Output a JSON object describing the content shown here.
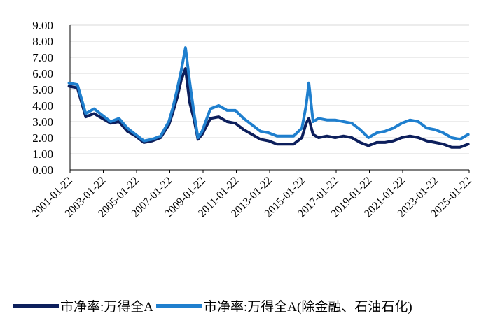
{
  "chart_data": {
    "type": "line",
    "title": "",
    "xlabel": "",
    "ylabel": "",
    "ylim": [
      0,
      9
    ],
    "y_ticks": [
      "0.00",
      "1.00",
      "2.00",
      "3.00",
      "4.00",
      "5.00",
      "6.00",
      "7.00",
      "8.00",
      "9.00"
    ],
    "x_ticks": [
      "2001-01-22",
      "2003-01-22",
      "2005-01-22",
      "2007-01-22",
      "2009-01-22",
      "2011-01-22",
      "2013-01-22",
      "2015-01-22",
      "2017-01-22",
      "2019-01-22",
      "2021-01-22",
      "2023-01-22",
      "2025-01-22"
    ],
    "x_range": [
      "2001-01-22",
      "2025-01-22"
    ],
    "grid": "horizontal",
    "legend_position": "bottom",
    "series": [
      {
        "name": "市净率:万得全A",
        "color": "#0d1f5c",
        "x": [
          "2001-01",
          "2001-07",
          "2002-01",
          "2002-07",
          "2003-01",
          "2003-07",
          "2004-01",
          "2004-07",
          "2005-01",
          "2005-07",
          "2006-01",
          "2006-07",
          "2007-01",
          "2007-04",
          "2007-07",
          "2007-10",
          "2008-01",
          "2008-04",
          "2008-07",
          "2008-10",
          "2009-01",
          "2009-07",
          "2010-01",
          "2010-07",
          "2011-01",
          "2011-07",
          "2012-01",
          "2012-07",
          "2013-01",
          "2013-07",
          "2014-01",
          "2014-07",
          "2015-01",
          "2015-04",
          "2015-06",
          "2015-09",
          "2016-01",
          "2016-07",
          "2017-01",
          "2017-07",
          "2018-01",
          "2018-07",
          "2019-01",
          "2019-07",
          "2020-01",
          "2020-07",
          "2021-01",
          "2021-07",
          "2022-01",
          "2022-07",
          "2023-01",
          "2023-07",
          "2024-01",
          "2024-07",
          "2025-01"
        ],
        "values": [
          5.2,
          5.1,
          3.3,
          3.5,
          3.2,
          2.9,
          3.0,
          2.4,
          2.1,
          1.7,
          1.8,
          2.0,
          2.8,
          3.6,
          4.5,
          5.6,
          6.3,
          4.2,
          3.2,
          1.9,
          2.2,
          3.2,
          3.3,
          3.0,
          2.9,
          2.5,
          2.2,
          1.9,
          1.8,
          1.6,
          1.6,
          1.6,
          2.0,
          2.9,
          3.2,
          2.2,
          2.0,
          2.1,
          2.0,
          2.1,
          2.0,
          1.7,
          1.5,
          1.7,
          1.7,
          1.8,
          2.0,
          2.1,
          2.0,
          1.8,
          1.7,
          1.6,
          1.4,
          1.4,
          1.6
        ]
      },
      {
        "name": "市净率:万得全A(除金融、石油石化)",
        "color": "#1f7fce",
        "x": [
          "2001-01",
          "2001-07",
          "2002-01",
          "2002-07",
          "2003-01",
          "2003-07",
          "2004-01",
          "2004-07",
          "2005-01",
          "2005-07",
          "2006-01",
          "2006-07",
          "2007-01",
          "2007-04",
          "2007-07",
          "2007-10",
          "2008-01",
          "2008-04",
          "2008-07",
          "2008-10",
          "2009-01",
          "2009-07",
          "2010-01",
          "2010-07",
          "2011-01",
          "2011-07",
          "2012-01",
          "2012-07",
          "2013-01",
          "2013-07",
          "2014-01",
          "2014-07",
          "2015-01",
          "2015-04",
          "2015-06",
          "2015-09",
          "2016-01",
          "2016-07",
          "2017-01",
          "2017-07",
          "2018-01",
          "2018-07",
          "2019-01",
          "2019-07",
          "2020-01",
          "2020-07",
          "2021-01",
          "2021-07",
          "2022-01",
          "2022-07",
          "2023-01",
          "2023-07",
          "2024-01",
          "2024-07",
          "2025-01"
        ],
        "values": [
          5.4,
          5.3,
          3.5,
          3.8,
          3.4,
          3.0,
          3.2,
          2.6,
          2.2,
          1.8,
          1.9,
          2.1,
          3.0,
          3.9,
          5.0,
          6.2,
          7.6,
          5.5,
          3.6,
          2.0,
          2.4,
          3.8,
          4.0,
          3.7,
          3.7,
          3.2,
          2.8,
          2.4,
          2.3,
          2.1,
          2.1,
          2.1,
          2.6,
          4.0,
          5.4,
          3.0,
          3.2,
          3.1,
          3.1,
          3.0,
          2.9,
          2.5,
          2.0,
          2.3,
          2.4,
          2.6,
          2.9,
          3.1,
          3.0,
          2.6,
          2.5,
          2.3,
          2.0,
          1.9,
          2.2
        ]
      }
    ]
  }
}
